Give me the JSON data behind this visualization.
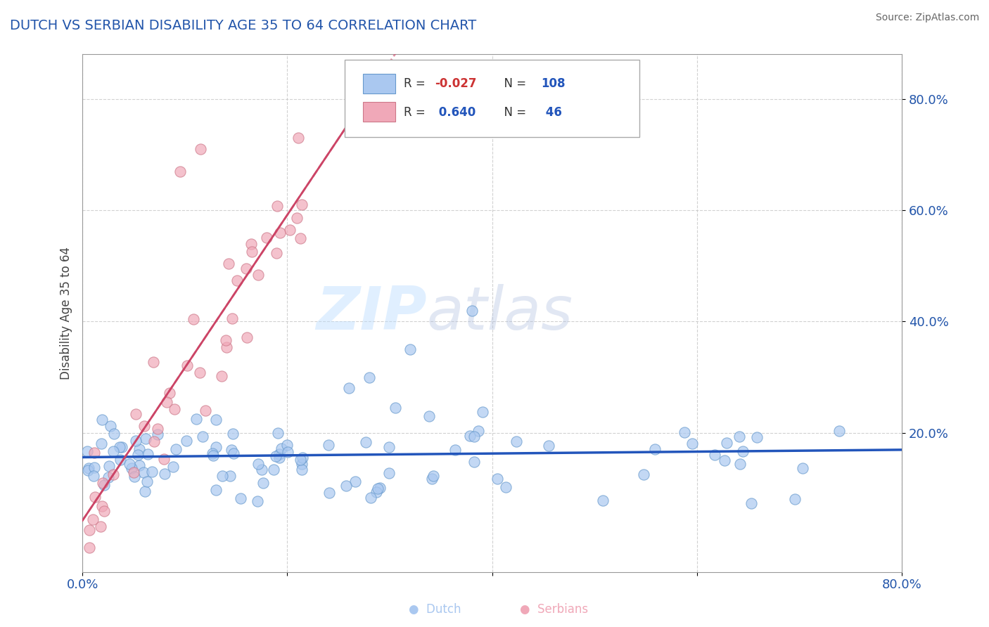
{
  "title": "DUTCH VS SERBIAN DISABILITY AGE 35 TO 64 CORRELATION CHART",
  "source": "Source: ZipAtlas.com",
  "ylabel": "Disability Age 35 to 64",
  "xlim": [
    0.0,
    0.8
  ],
  "ylim": [
    -0.05,
    0.88
  ],
  "xtick_vals": [
    0.0,
    0.2,
    0.4,
    0.6,
    0.8
  ],
  "xtick_labels": [
    "0.0%",
    "",
    "",
    "",
    "80.0%"
  ],
  "ytick_vals": [
    0.2,
    0.4,
    0.6,
    0.8
  ],
  "ytick_labels": [
    "20.0%",
    "40.0%",
    "60.0%",
    "80.0%"
  ],
  "title_color": "#2255aa",
  "source_color": "#666666",
  "watermark_zip": "ZIP",
  "watermark_atlas": "atlas",
  "legend_dutch_r": "-0.027",
  "legend_dutch_n": "108",
  "legend_serbian_r": "0.640",
  "legend_serbian_n": "46",
  "dutch_color": "#aac8f0",
  "serbian_color": "#f0a8b8",
  "dutch_line_color": "#2255bb",
  "serbian_line_color": "#cc4466",
  "background_color": "#ffffff",
  "grid_color": "#cccccc"
}
